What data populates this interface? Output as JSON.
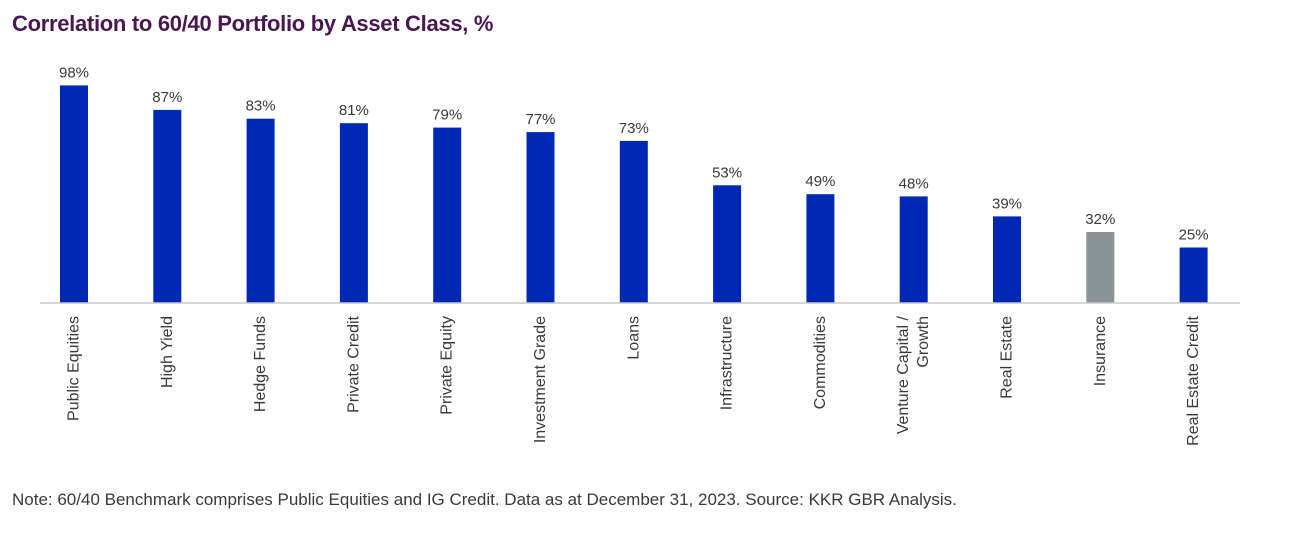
{
  "chart_data": {
    "type": "bar",
    "title": "Correlation to 60/40 Portfolio by Asset Class, %",
    "categories": [
      "Public Equities",
      "High Yield",
      "Hedge Funds",
      "Private Credit",
      "Private Equity",
      "Investment Grade",
      "Loans",
      "Infrastructure",
      "Commodities",
      "Venture Capital / Growth",
      "Real Estate",
      "Insurance",
      "Real Estate Credit"
    ],
    "category_lines": [
      [
        "Public Equities"
      ],
      [
        "High Yield"
      ],
      [
        "Hedge Funds"
      ],
      [
        "Private Credit"
      ],
      [
        "Private Equity"
      ],
      [
        "Investment Grade"
      ],
      [
        "Loans"
      ],
      [
        "Infrastructure"
      ],
      [
        "Commodities"
      ],
      [
        "Venture Capital /",
        "Growth"
      ],
      [
        "Real Estate"
      ],
      [
        "Insurance"
      ],
      [
        "Real Estate Credit"
      ]
    ],
    "values": [
      98,
      87,
      83,
      81,
      79,
      77,
      73,
      53,
      49,
      48,
      39,
      32,
      25
    ],
    "value_labels": [
      "98%",
      "87%",
      "83%",
      "81%",
      "79%",
      "77%",
      "73%",
      "53%",
      "49%",
      "48%",
      "39%",
      "32%",
      "25%"
    ],
    "bar_colors": [
      "#0028b4",
      "#0028b4",
      "#0028b4",
      "#0028b4",
      "#0028b4",
      "#0028b4",
      "#0028b4",
      "#0028b4",
      "#0028b4",
      "#0028b4",
      "#0028b4",
      "#8a9398",
      "#0028b4"
    ],
    "xlabel": "",
    "ylabel": "",
    "ylim": [
      0,
      100
    ],
    "grid": false,
    "legend": "none"
  },
  "note": "Note: 60/40 Benchmark comprises Public Equities and IG Credit. Data as at December 31, 2023. Source: KKR GBR Analysis."
}
